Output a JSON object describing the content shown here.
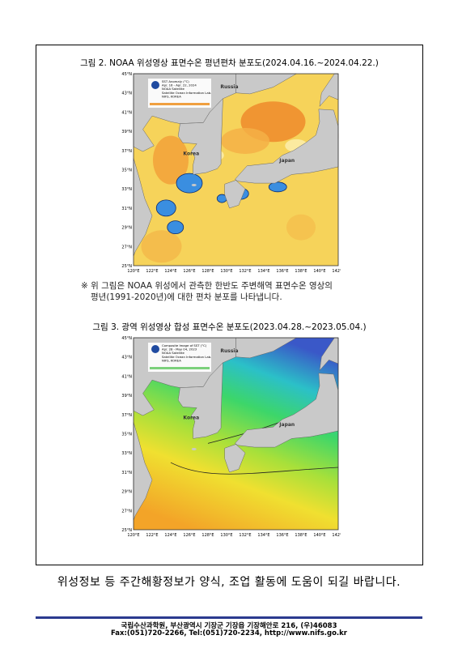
{
  "figures": [
    {
      "caption": "그림 2. NOAA 위성영상 표면수온 평년편차 분포도(2024.04.16.~2024.04.22.)",
      "map": {
        "legend": [
          "SST Anomaly (°C)",
          "Apr. 16 - Apr. 22, 2024",
          "NOAA Satellite",
          "Satellite Ocean Information Lab.",
          "NIFS, KOREA"
        ],
        "places": [
          "Russia",
          "Korea",
          "Japan"
        ],
        "lat_labels": [
          "45°N",
          "43°N",
          "41°N",
          "39°N",
          "37°N",
          "35°N",
          "33°N",
          "31°N",
          "29°N",
          "27°N",
          "25°N"
        ],
        "lon_labels": [
          "120°E",
          "122°E",
          "124°E",
          "126°E",
          "128°E",
          "130°E",
          "132°E",
          "134°E",
          "136°E",
          "138°E",
          "140°E",
          "142°E"
        ]
      },
      "note": [
        "※ 위 그림은 NOAA 위성에서 관측한 한반도 주변해역 표면수온 영상의",
        "평년(1991-2020년)에 대한 편차 분포를 나타냅니다."
      ]
    },
    {
      "caption": "그림 3. 광역 위성영상 합성 표면수온 분포도(2023.04.28.~2023.05.04.)",
      "map": {
        "legend": [
          "Composite Image of SST (°C)",
          "Apr. 28 - May 04, 2023",
          "NOAA Satellite",
          "Satellite Ocean Information Lab.",
          "NIFS, KOREA"
        ],
        "places": [
          "Russia",
          "Korea",
          "Japan"
        ],
        "lat_labels": [
          "45°N",
          "43°N",
          "41°N",
          "39°N",
          "37°N",
          "35°N",
          "33°N",
          "31°N",
          "29°N",
          "27°N",
          "25°N"
        ],
        "lon_labels": [
          "120°E",
          "122°E",
          "124°E",
          "126°E",
          "128°E",
          "130°E",
          "132°E",
          "134°E",
          "136°E",
          "138°E",
          "140°E",
          "142°E"
        ]
      }
    }
  ],
  "closing": "위성정보 등 주간해황정보가 양식, 조업 활동에 도움이 되길 바랍니다.",
  "footer": [
    "국립수산과학원, 부산광역시 기장군 기장읍 기장해안로 216, (우)46083",
    "Fax:(051)720-2266, Tel:(051)720-2234, http://www.nifs.go.kr"
  ]
}
